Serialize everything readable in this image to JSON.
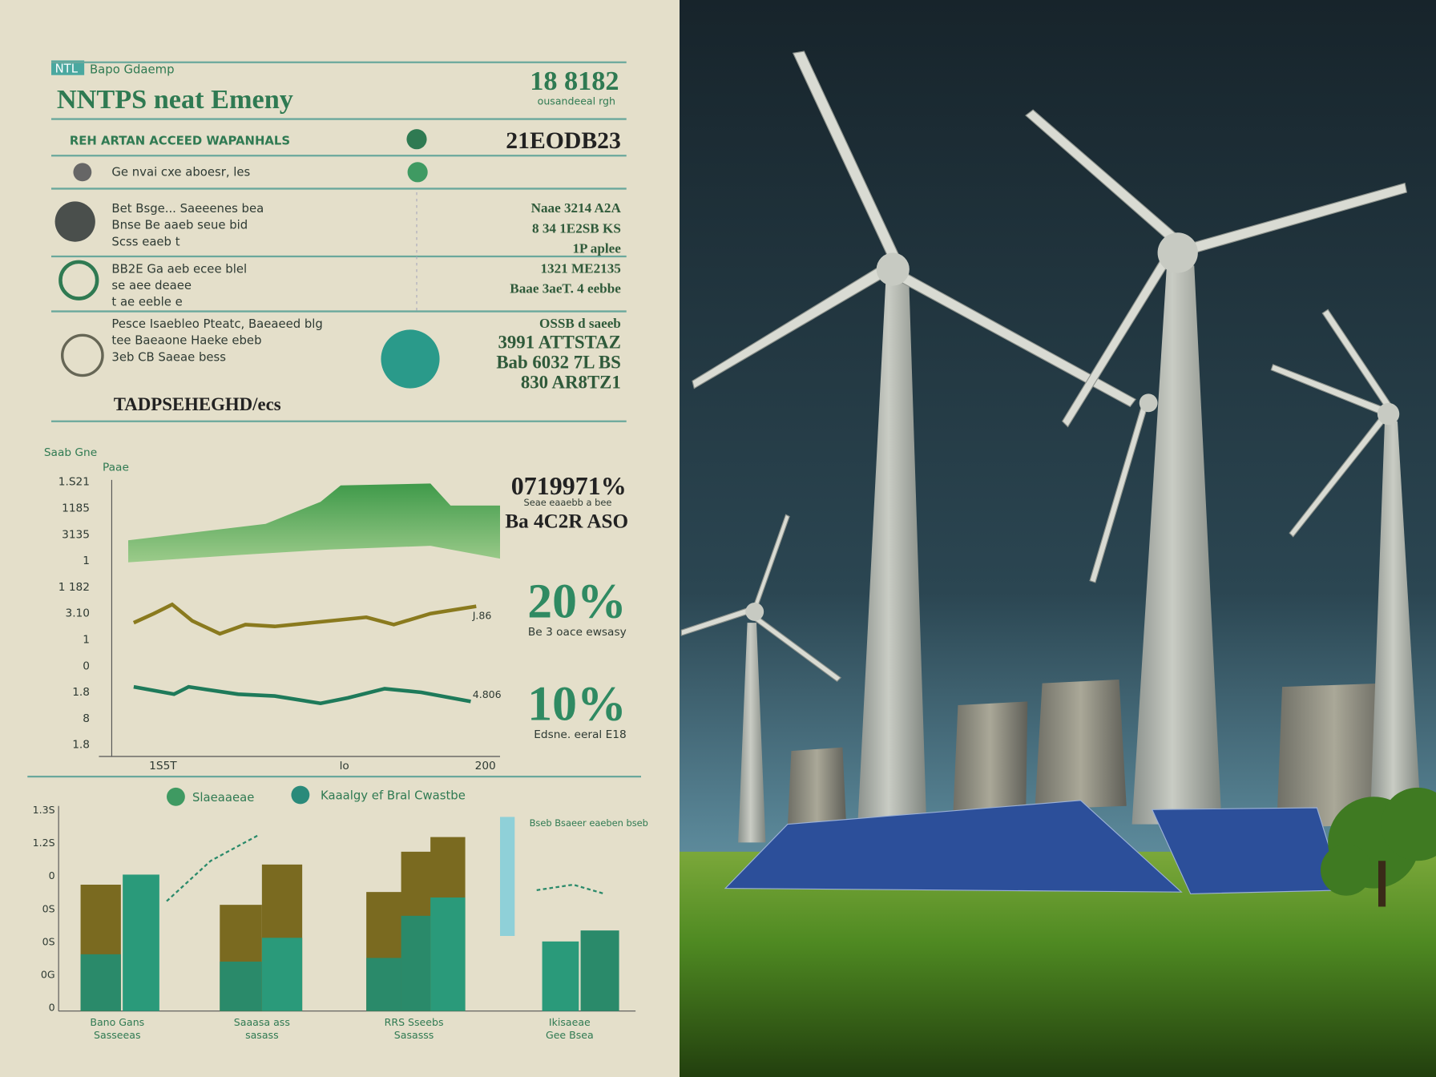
{
  "header": {
    "badge": "NTL",
    "kicker": "Bapo Gdaemp",
    "title": "NNTPS neat Emeny",
    "stat": "18 8182",
    "stat_note": "ousandeeal rgh"
  },
  "rows": [
    {
      "label": "REH ARTAN ACCEED WAPANHALS",
      "value": "21EODB23"
    },
    {
      "label": "Ge nvai cxe aboesr, les"
    }
  ],
  "items": [
    {
      "lines": [
        "Bet Bsge... Saeeenes bea",
        "Bnse Be aaeb seue bid",
        "Scss eaeb t"
      ],
      "value": [
        "Naae 3214 A2A",
        "8 34 1E2SB KS",
        "1P aplee"
      ]
    },
    {
      "lines": [
        "BB2E Ga aeb ecee blel",
        "se aee deaee",
        "t ae eeble e"
      ],
      "value": [
        "1321 ME2135",
        "Baae 3aeT. 4 eebbe"
      ]
    },
    {
      "lines": [
        "Pesce Isaebleo Pteatc, Baeaeed blg",
        "tee Baeaone Haeke ebeb",
        "3eb CB Saeae bess"
      ],
      "value": [
        "OSSB d saeeb",
        "3991 ATTSTAZ",
        "Bab 6032 7L BS",
        "830 AR8TZ1"
      ]
    }
  ],
  "footer_row": "TADPSEHEGHD/ecs",
  "line_chart": {
    "kicker": "Saab Gne",
    "label": "Paae",
    "y_labels": [
      "1.S21",
      "1185",
      "3135",
      "1",
      "1 182",
      "3.10",
      "1",
      "0",
      "1.8",
      "8",
      "1.8"
    ],
    "x_labels": [
      "1S5T",
      "lo",
      "200"
    ],
    "end_labels": [
      "J.86",
      "4.806"
    ]
  },
  "stats": [
    {
      "value": "0719971%",
      "note": "Seae eaaebb a bee"
    },
    {
      "value": "Ba 4C2R ASO"
    },
    {
      "value": "20%",
      "note": "Be 3 oace ewsasy"
    },
    {
      "value": "10%",
      "note": "Edsne. eeral E18"
    }
  ],
  "bar_chart": {
    "legend": [
      "Slaeaaeae",
      "Kaaalgy ef Bral Cwastbe"
    ],
    "y_labels": [
      "1.3S",
      "1.2S",
      "0",
      "0S",
      "0S",
      "0G",
      "0"
    ],
    "groups": [
      "Bano Gans",
      "Saaasa ass",
      "RRS Sseebs",
      "Ikisaeae"
    ],
    "group_notes": [
      "Sasseeas",
      "sasass",
      "Sasasss",
      "Gee Bsea"
    ],
    "side_note": "Bseb Bsaeer eaeben bseb"
  }
}
